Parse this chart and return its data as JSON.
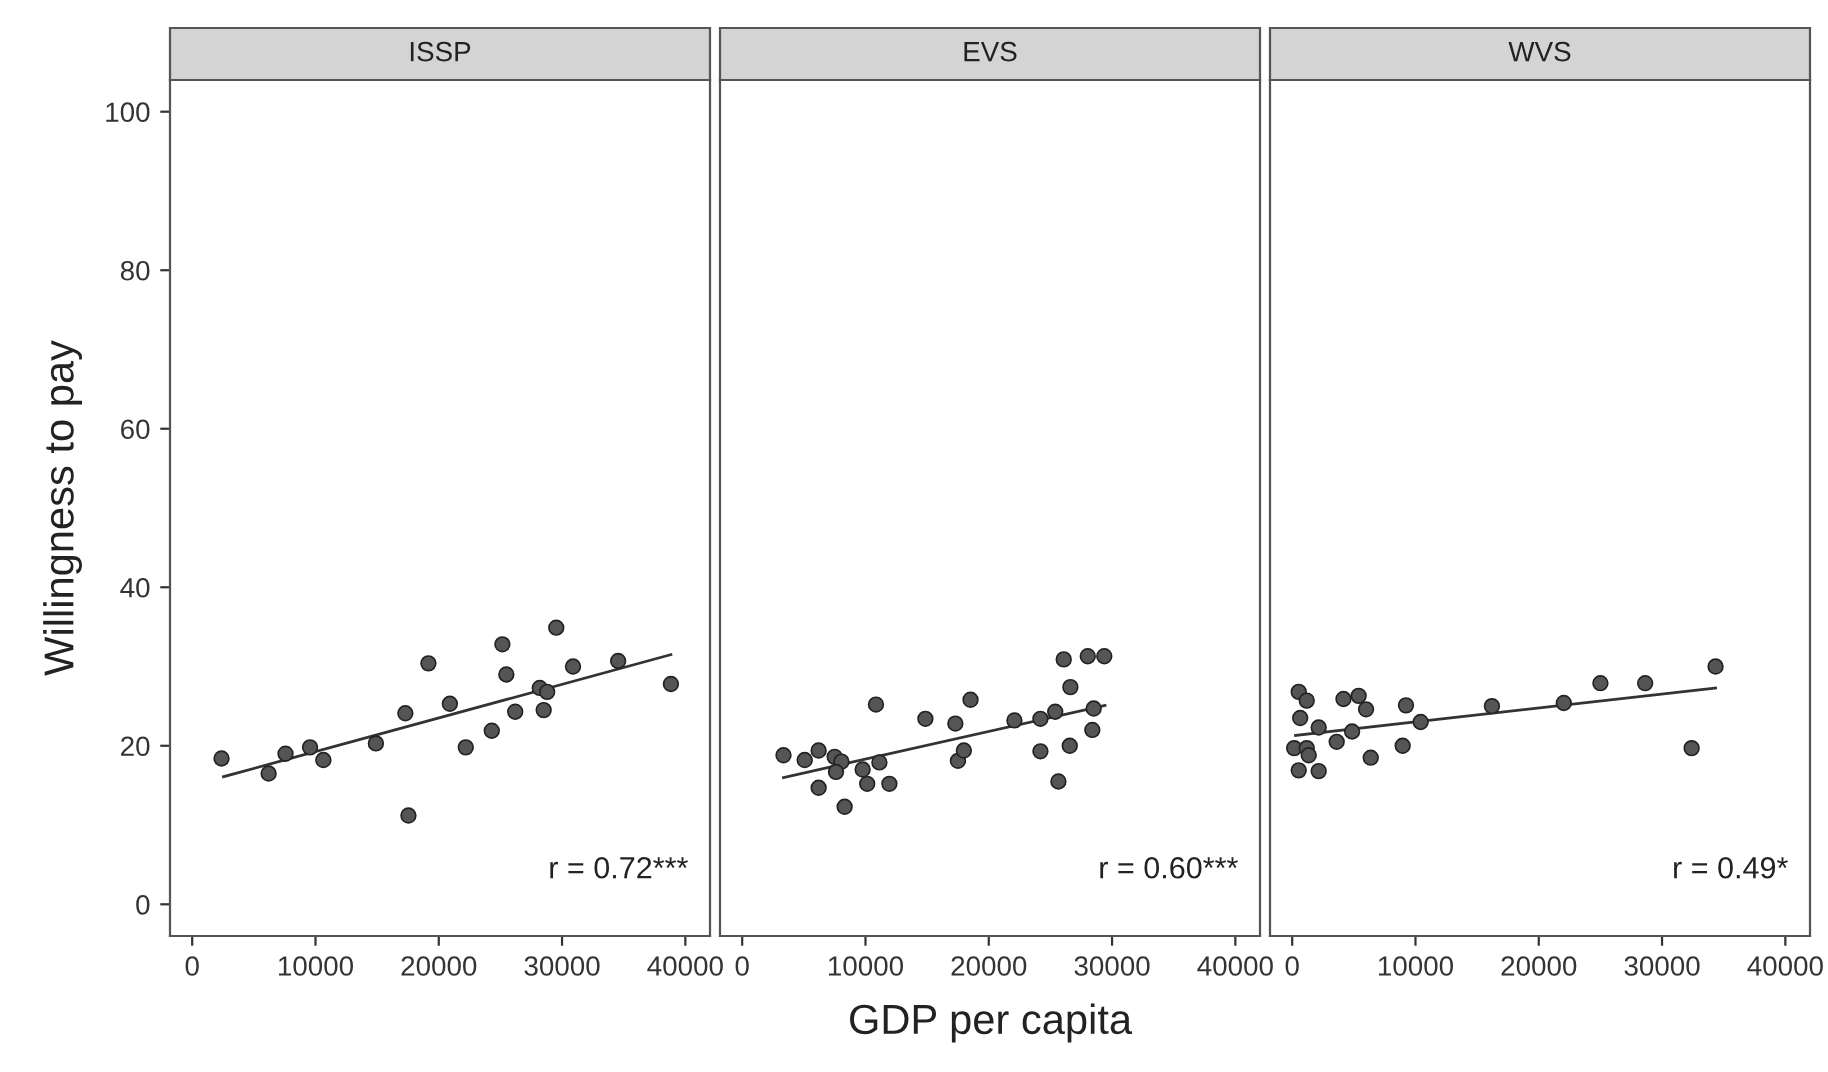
{
  "chart_data": [
    {
      "type": "scatter",
      "title": "ISSP",
      "ylabel": "Willingness to pay",
      "xlim": [
        -1800,
        42000
      ],
      "ylim": [
        -4,
        104
      ],
      "xticks": [
        0,
        10000,
        20000,
        30000,
        40000
      ],
      "yticks": [
        0,
        20,
        40,
        60,
        80,
        100
      ],
      "marker": "circle",
      "grid": false,
      "legend": false,
      "annotations": [
        "r = 0.72***"
      ],
      "series": [
        {
          "color": "#555555",
          "x": [
            2380,
            6200,
            7570,
            9560,
            10640,
            14900,
            17290,
            17540,
            19160,
            20900,
            22190,
            24300,
            25160,
            25480,
            26200,
            28190,
            28790,
            28510,
            29530,
            30890,
            34550,
            38830
          ],
          "values": [
            18.4,
            16.5,
            19.0,
            19.8,
            18.2,
            20.3,
            24.1,
            11.2,
            30.4,
            25.3,
            19.8,
            21.9,
            32.8,
            29.0,
            24.3,
            27.3,
            26.8,
            24.5,
            34.9,
            30.0,
            30.7,
            27.8
          ]
        },
        {
          "type": "line",
          "marker": "none",
          "color": "#333333",
          "x": [
            2540,
            38830
          ],
          "values": [
            16.1,
            31.5
          ]
        }
      ]
    },
    {
      "type": "scatter",
      "title": "EVS",
      "xlabel": "GDP per capita",
      "xlim": [
        -1800,
        42000
      ],
      "ylim": [
        -4,
        104
      ],
      "xticks": [
        0,
        10000,
        20000,
        30000,
        40000
      ],
      "yticks": [
        0,
        20,
        40,
        60,
        80,
        100
      ],
      "tick_labels": "x",
      "marker": "circle",
      "grid": false,
      "legend": false,
      "annotations": [
        "r = 0.60***"
      ],
      "series": [
        {
          "color": "#555555",
          "x": [
            3350,
            5070,
            6200,
            6200,
            7500,
            8050,
            7610,
            8310,
            9770,
            10140,
            10850,
            11130,
            11940,
            14860,
            17290,
            17500,
            17980,
            18520,
            22080,
            24190,
            24190,
            25390,
            25870,
            26080,
            26620,
            26570,
            28030,
            29370,
            28400,
            28510,
            25650
          ],
          "values": [
            18.8,
            18.2,
            19.4,
            14.7,
            18.6,
            18.0,
            16.7,
            12.3,
            17.0,
            15.2,
            25.2,
            17.9,
            15.2,
            23.4,
            22.8,
            18.1,
            19.4,
            25.8,
            23.2,
            23.4,
            19.3,
            24.3,
            null,
            30.9,
            27.4,
            20.0,
            31.3,
            31.3,
            22.0,
            24.7,
            15.5
          ]
        },
        {
          "type": "line",
          "marker": "none",
          "color": "#333333",
          "x": [
            3350,
            29430
          ],
          "values": [
            16.0,
            25.1
          ]
        }
      ]
    },
    {
      "type": "scatter",
      "title": "WVS",
      "xlim": [
        -1800,
        42000
      ],
      "ylim": [
        -4,
        104
      ],
      "xticks": [
        0,
        10000,
        20000,
        30000,
        40000
      ],
      "yticks": [
        0,
        20,
        40,
        60,
        80,
        100
      ],
      "tick_labels": "x",
      "marker": "circle",
      "grid": false,
      "legend": false,
      "annotations": [
        "r = 0.49*"
      ],
      "series": [
        {
          "color": "#555555",
          "x": [
            530,
            1180,
            650,
            2150,
            160,
            1180,
            1340,
            530,
            2150,
            3610,
            4160,
            4860,
            5390,
            5990,
            6370,
            8960,
            9230,
            10420,
            16200,
            22030,
            25000,
            28630,
            32400,
            34340
          ],
          "values": [
            26.8,
            25.7,
            23.5,
            22.3,
            19.7,
            19.7,
            18.8,
            16.9,
            16.8,
            20.5,
            25.9,
            21.8,
            26.3,
            24.6,
            18.5,
            20.0,
            25.1,
            23.0,
            25.0,
            25.4,
            27.9,
            27.9,
            19.7,
            30.0
          ]
        },
        {
          "type": "line",
          "marker": "none",
          "color": "#333333",
          "x": [
            270,
            34340
          ],
          "values": [
            21.3,
            27.3
          ]
        }
      ]
    }
  ]
}
